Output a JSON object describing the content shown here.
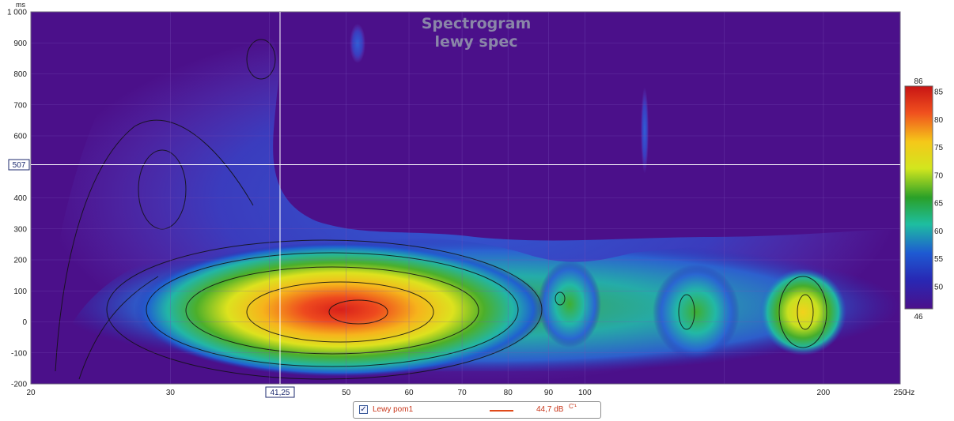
{
  "chart_data": {
    "type": "heatmap",
    "title": "Spectrogram",
    "subtitle": "lewy spec",
    "x_axis": {
      "scale": "log",
      "unit": "Hz",
      "range": [
        20,
        250
      ],
      "tick_labels": [
        "20",
        "30",
        "50",
        "60",
        "70",
        "80",
        "90",
        "100",
        "200",
        "250"
      ],
      "tick_values": [
        20,
        30,
        50,
        60,
        70,
        80,
        90,
        100,
        200,
        250
      ]
    },
    "y_axis": {
      "unit": "ms",
      "range": [
        -200,
        1000
      ],
      "tick_labels": [
        "1 000",
        "900",
        "800",
        "700",
        "600",
        "400",
        "300",
        "200",
        "100",
        "0",
        "-100",
        "-200"
      ],
      "tick_values": [
        1000,
        900,
        800,
        700,
        600,
        400,
        300,
        200,
        100,
        0,
        -100,
        -200
      ]
    },
    "colorbar": {
      "min": 46,
      "max": 86,
      "min_label": "46",
      "max_label": "86",
      "tick_labels": [
        "85",
        "80",
        "75",
        "70",
        "65",
        "60",
        "55",
        "50"
      ],
      "tick_values": [
        85,
        80,
        75,
        70,
        65,
        60,
        55,
        50
      ]
    },
    "cursor": {
      "x_label": "41,25",
      "y_label": "507",
      "x_value": 41.25,
      "y_value": 507
    },
    "hotspots": [
      {
        "freq": 52,
        "time": 30,
        "level": 85
      },
      {
        "freq": 36,
        "time": 30,
        "level": 72
      },
      {
        "freq": 196,
        "time": 30,
        "level": 78
      },
      {
        "freq": 140,
        "time": 50,
        "level": 68
      },
      {
        "freq": 95,
        "time": 80,
        "level": 66
      }
    ],
    "grid": true,
    "legend": {
      "position": "bottom",
      "checkbox": "✓",
      "series_name": "Lewy pom1",
      "value": "44,7 dB",
      "value_suffix": "C'¹",
      "color": "#e04a1a"
    }
  }
}
